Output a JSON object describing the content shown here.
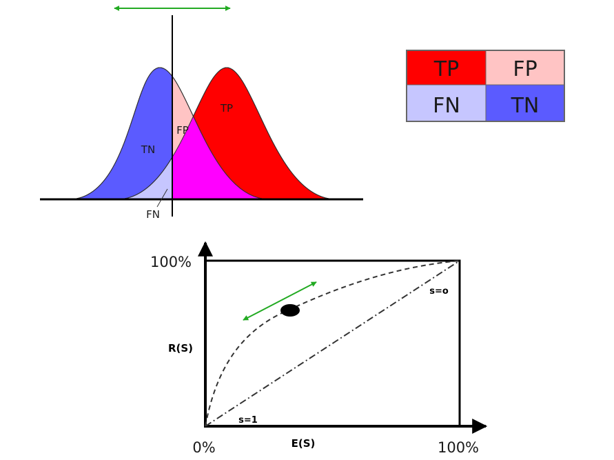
{
  "colors": {
    "tp": "#ff0000",
    "fp": "#ffc4c4",
    "fn": "#c6c6ff",
    "tn": "#5b5bff",
    "overlap": "#ff00ff",
    "arrow": "#22aa22",
    "line": "#000000"
  },
  "distribution": {
    "labels": {
      "tn": "TN",
      "fp": "FP",
      "tp": "TP",
      "fn": "FN"
    }
  },
  "legend": {
    "tp": "TP",
    "fp": "FP",
    "fn": "FN",
    "tn": "TN"
  },
  "roc": {
    "y_top_label": "100%",
    "x_origin_label": "0%",
    "x_end_label": "100%",
    "y_axis_label": "R(S)",
    "x_axis_label": "E(S)",
    "s_zero_label": "s=o",
    "s_one_label": "s=1"
  }
}
